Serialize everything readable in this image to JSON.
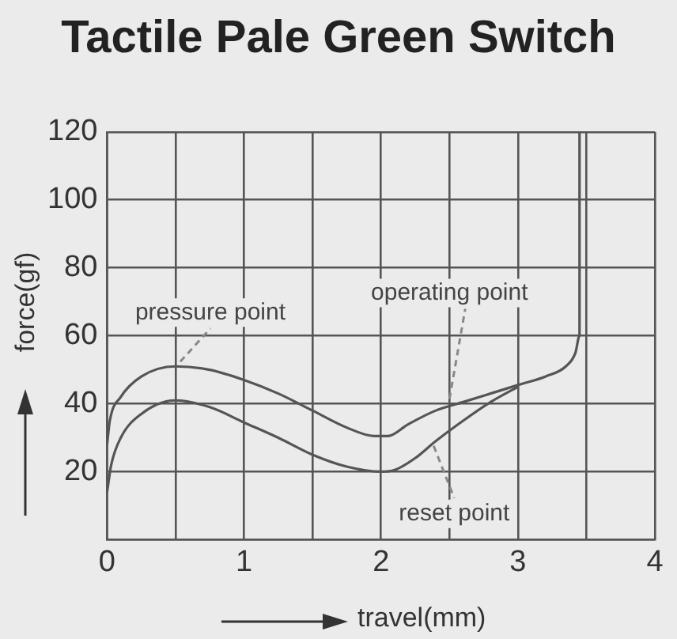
{
  "chart_data": {
    "type": "line",
    "title": "Tactile Pale Green Switch",
    "xlabel": "travel(mm)",
    "ylabel": "force(gf)",
    "series": [
      {
        "color": "#555555",
        "x": [
          0,
          0.02,
          0.1,
          0.25,
          0.5,
          0.75,
          1,
          1.25,
          1.5,
          1.75,
          1.95,
          2.05,
          2.2,
          2.4,
          2.6,
          2.8,
          3,
          3.2,
          3.35,
          3.42,
          3.45,
          3.45
        ],
        "values": [
          28,
          35,
          42,
          48,
          51,
          50,
          47,
          43,
          38,
          33,
          30.5,
          30.5,
          34,
          38,
          40.5,
          43,
          45.5,
          48,
          51,
          55,
          60,
          120
        ]
      },
      {
        "color": "#555555",
        "x": [
          0,
          0.03,
          0.1,
          0.25,
          0.5,
          0.75,
          1,
          1.25,
          1.5,
          1.75,
          2,
          2.1,
          2.25,
          2.4,
          2.6,
          2.8,
          3
        ],
        "values": [
          14,
          22,
          30,
          37,
          41,
          39,
          34.5,
          30,
          25,
          21.5,
          20,
          20.5,
          24,
          29,
          35,
          40.5,
          45
        ]
      }
    ],
    "annotations": [
      {
        "text": "pressure point",
        "x": 0.5,
        "y": 51
      },
      {
        "text": "operating point",
        "x": 2.5,
        "y": 40
      },
      {
        "text": "reset point",
        "x": 2.35,
        "y": 29
      }
    ],
    "xlim": [
      0,
      4
    ],
    "xticks": [
      0,
      {
        "value": 0.5,
        "label": null
      },
      1,
      {
        "value": 1.5,
        "label": null
      },
      2,
      {
        "value": 2.5,
        "label": null
      },
      3,
      {
        "value": 3.5,
        "label": null
      },
      4
    ],
    "ylim": [
      0,
      120
    ],
    "yticks": [
      {
        "value": 0,
        "label": null
      },
      20,
      40,
      60,
      80,
      100,
      120
    ],
    "grid": true,
    "legend": false,
    "marker": "none",
    "line_style": "solid"
  }
}
